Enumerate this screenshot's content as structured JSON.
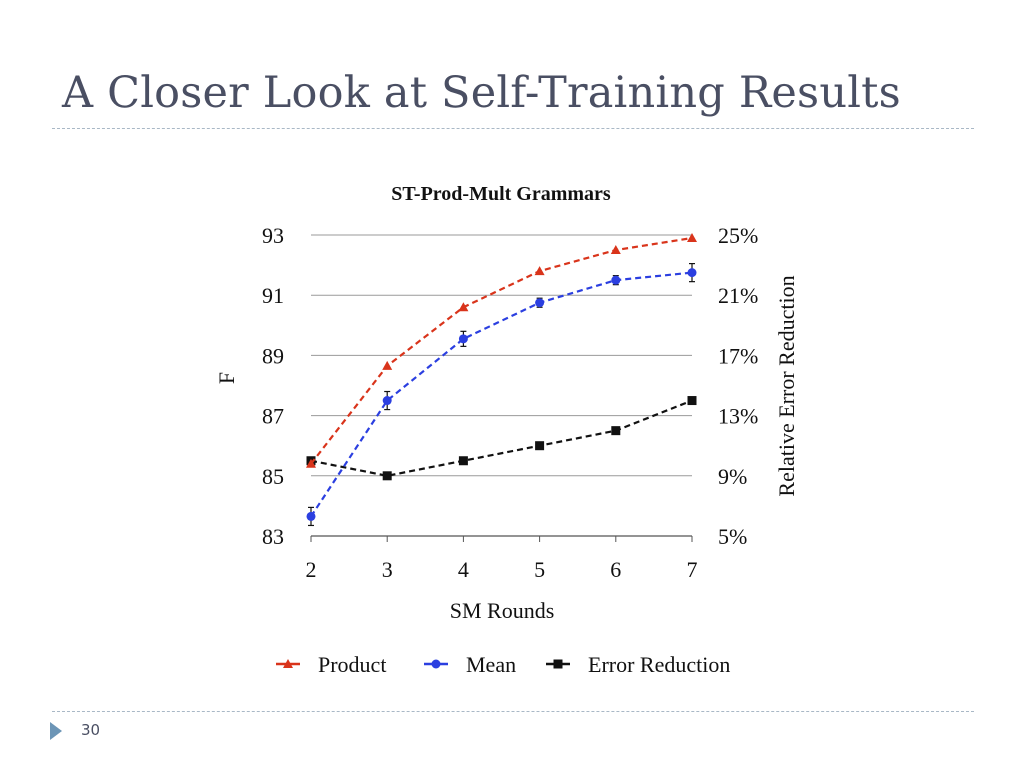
{
  "slide": {
    "title": "A Closer Look at Self-Training Results",
    "page_number": "30"
  },
  "chart_data": {
    "type": "line",
    "title": "ST-Prod-Mult Grammars",
    "xlabel": "SM Rounds",
    "ylabel": "F",
    "y2label": "Relative Error Reduction",
    "categories": [
      "2",
      "3",
      "4",
      "5",
      "6",
      "7"
    ],
    "x": [
      2,
      3,
      4,
      5,
      6,
      7
    ],
    "ylim": [
      83,
      93
    ],
    "yticks": [
      "83",
      "85",
      "87",
      "89",
      "91",
      "93"
    ],
    "y2lim": [
      5,
      25
    ],
    "y2ticks": [
      "5%",
      "9%",
      "13%",
      "17%",
      "21%",
      "25%"
    ],
    "grid": "horizontal",
    "legend_position": "bottom",
    "series": [
      {
        "name": "Product",
        "axis": "left",
        "color": "#d9341b",
        "marker": "triangle",
        "values": [
          85.4,
          88.65,
          90.6,
          91.8,
          92.5,
          92.9
        ]
      },
      {
        "name": "Mean",
        "axis": "left",
        "color": "#2b3fe0",
        "marker": "circle",
        "values": [
          83.65,
          87.5,
          89.55,
          90.75,
          91.5,
          91.75
        ],
        "error": [
          0.3,
          0.3,
          0.25,
          0.15,
          0.15,
          0.3
        ]
      },
      {
        "name": "Error Reduction",
        "axis": "right",
        "color": "#111111",
        "marker": "square",
        "values": [
          10,
          9,
          10,
          11,
          12,
          14
        ]
      }
    ]
  }
}
